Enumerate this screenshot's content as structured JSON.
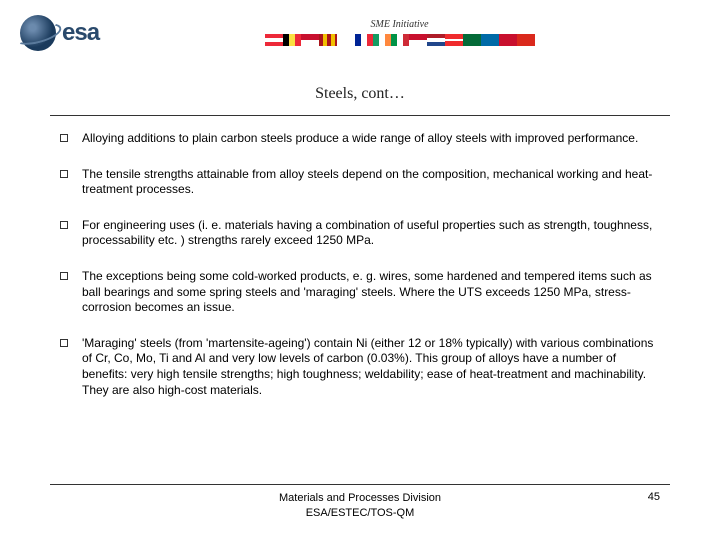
{
  "header": {
    "logo_text": "esa",
    "subtitle": "SME Initiative",
    "flags": [
      {
        "bg": "linear-gradient(to bottom, #ed2939 33%, #fff 33%, #fff 66%, #ed2939 66%)"
      },
      {
        "bg": "linear-gradient(to right, #000 33%, #fae042 33%, #fae042 66%, #ed2939 66%)"
      },
      {
        "bg": "linear-gradient(to bottom, #c8102e 50%, #fff 50%)"
      },
      {
        "bg": "repeating-linear-gradient(to right, #aa151b 0 4px, #f1bf00 4px 8px)"
      },
      {
        "bg": "linear-gradient(#fff, #fff)"
      },
      {
        "bg": "linear-gradient(to right, #002395 33%, #fff 33%, #fff 66%, #ed2939 66%)"
      },
      {
        "bg": "linear-gradient(to right, #169b62 33%, #fff 33%, #fff 66%, #ff883e 66%)"
      },
      {
        "bg": "linear-gradient(to right, #009246 33%, #fff 33%, #fff 66%, #ce2b37 66%)"
      },
      {
        "bg": "linear-gradient(to bottom, #c8102e 50%, #fff 50%)"
      },
      {
        "bg": "linear-gradient(to bottom, #ae1c28 33%, #fff 33%, #fff 66%, #21468b 66%)"
      },
      {
        "bg": "linear-gradient(to bottom, #ef2b2d 40%, #fff 40%, #fff 60%, #ef2b2d 60%)"
      },
      {
        "bg": "linear-gradient(#046a38, #046a38)"
      },
      {
        "bg": "linear-gradient(#006aa7, #006aa7)"
      },
      {
        "bg": "linear-gradient(#c8102e, #c8102e)"
      },
      {
        "bg": "linear-gradient(#da291c, #da291c)"
      }
    ]
  },
  "title": "Steels, cont…",
  "bullets": [
    "Alloying additions to plain carbon steels produce a wide range of alloy steels with improved performance.",
    "The tensile strengths attainable from alloy steels depend on the composition, mechanical working and heat-treatment processes.",
    "For engineering uses (i. e. materials having a combination of useful properties such as strength, toughness, processability etc. ) strengths rarely exceed 1250 MPa.",
    "The exceptions being some cold-worked products, e. g. wires, some hardened and tempered items such as ball bearings and some spring steels and 'maraging' steels. Where the UTS exceeds 1250 MPa, stress-corrosion becomes an issue.",
    "'Maraging' steels (from 'martensite-ageing') contain Ni (either 12 or 18% typically) with various combinations of Cr, Co, Mo, Ti and Al and very low levels of carbon (0.03%). This group of alloys have a number of benefits: very high tensile strengths; high toughness; weldability; ease of heat-treatment and machinability. They are also high-cost materials."
  ],
  "footer": {
    "line1": "Materials and Processes Division",
    "line2": "ESA/ESTEC/TOS-QM",
    "page": "45"
  }
}
